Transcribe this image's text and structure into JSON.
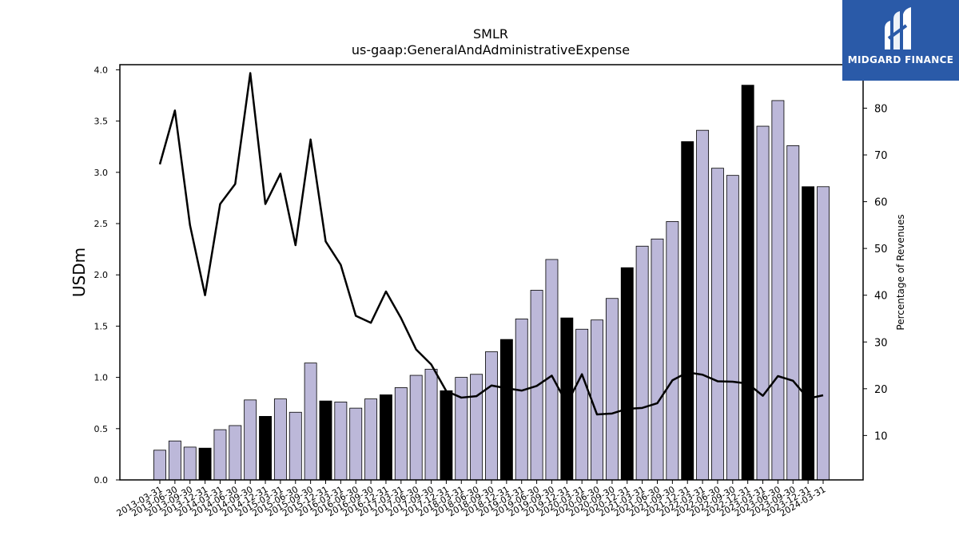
{
  "chart_data": {
    "type": "bar",
    "title": "SMLR",
    "subtitle": "us-gaap:GeneralAndAdministrativeExpense",
    "ylabel": "USDm",
    "y2label": "Percentage of Revenues",
    "ylim": [
      0,
      4.05
    ],
    "y2lim": [
      0.5,
      89.3
    ],
    "yticks": [
      "0.0",
      "0.5",
      "1.0",
      "1.5",
      "2.0",
      "2.5",
      "3.0",
      "3.5",
      "4.0"
    ],
    "y2ticks": [
      "10",
      "20",
      "30",
      "40",
      "50",
      "60",
      "70",
      "80"
    ],
    "categories": [
      "2013-03-31",
      "2013-06-30",
      "2013-09-30",
      "2013-12-31",
      "2014-03-31",
      "2014-06-30",
      "2014-09-30",
      "2014-12-31",
      "2015-03-31",
      "2015-06-30",
      "2015-09-30",
      "2015-12-31",
      "2016-03-31",
      "2016-06-30",
      "2016-09-30",
      "2016-12-31",
      "2017-03-31",
      "2017-06-30",
      "2017-09-30",
      "2017-12-31",
      "2018-03-31",
      "2018-06-30",
      "2018-09-30",
      "2018-12-31",
      "2019-03-31",
      "2019-06-30",
      "2019-09-30",
      "2019-12-31",
      "2020-03-31",
      "2020-06-30",
      "2020-09-30",
      "2020-12-31",
      "2021-03-31",
      "2021-06-30",
      "2021-09-30",
      "2021-12-31",
      "2022-03-31",
      "2022-06-30",
      "2022-09-30",
      "2022-12-31",
      "2023-03-31",
      "2023-06-30",
      "2023-09-30",
      "2023-12-31",
      "2024-03-31"
    ],
    "series": [
      {
        "kind": "bar",
        "values": [
          0.29,
          0.38,
          0.32,
          0.31,
          0.49,
          0.53,
          0.78,
          0.62,
          0.79,
          0.66,
          1.14,
          0.77,
          0.76,
          0.7,
          0.79,
          0.83,
          0.9,
          1.02,
          1.08,
          0.87,
          1.0,
          1.03,
          1.25,
          1.37,
          1.57,
          1.85,
          2.15,
          1.58,
          1.47,
          1.56,
          1.77,
          2.07,
          2.28,
          2.35,
          2.52,
          3.3,
          3.41,
          3.04,
          2.97,
          3.85,
          3.45,
          3.7,
          3.26,
          2.86,
          2.86
        ],
        "color": "#bcb8d9",
        "highlight_color": "#000000",
        "highlight_quarter": "12-31"
      },
      {
        "kind": "line",
        "axis": "secondary",
        "values": [
          68,
          79.5,
          55,
          40,
          59.5,
          63.8,
          87.5,
          59.5,
          66,
          50.7,
          73.3,
          51.5,
          46.5,
          35.6,
          34.1,
          40.8,
          35.1,
          28.4,
          25.2,
          19.5,
          18.1,
          18.4,
          20.7,
          20.1,
          19.6,
          20.6,
          22.8,
          16.8,
          23.1,
          14.5,
          14.7,
          15.7,
          15.9,
          16.9,
          21.8,
          23.5,
          23,
          21.6,
          21.5,
          21.1,
          18.5,
          22.7,
          21.7,
          17.9,
          18.6
        ],
        "color": "#000000"
      }
    ]
  },
  "logo": {
    "text": "MIDGARD FINANCE"
  }
}
